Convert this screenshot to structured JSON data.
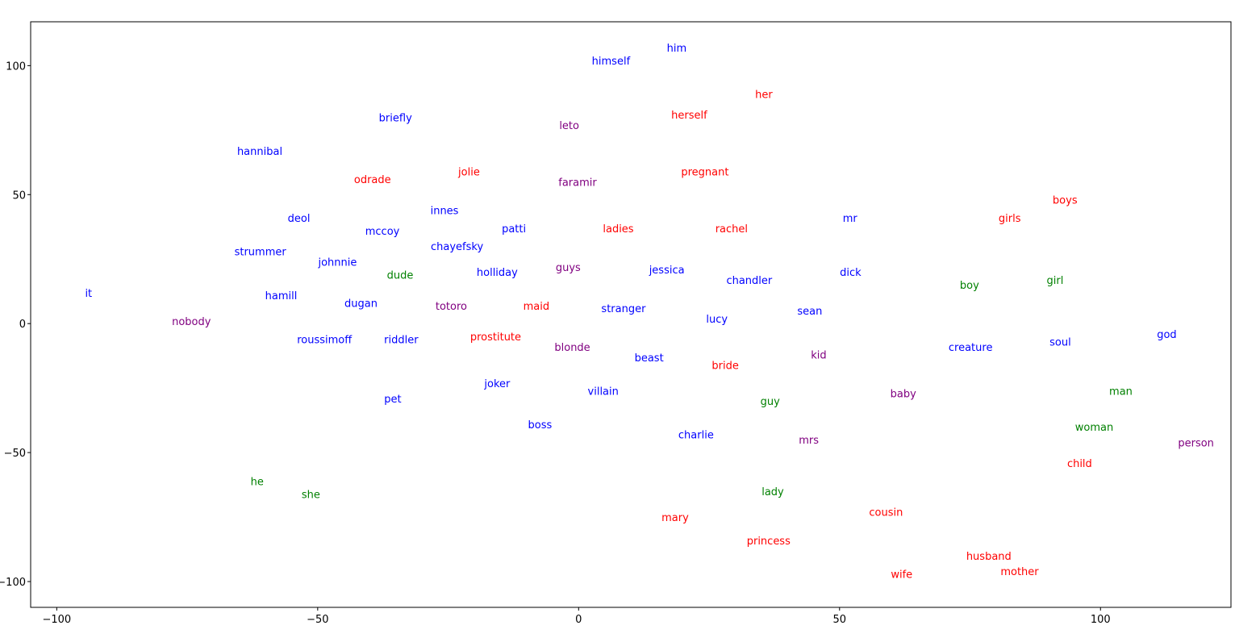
{
  "chart_data": {
    "type": "scatter",
    "title": "",
    "xlabel": "",
    "ylabel": "",
    "xlim": [
      -105,
      125
    ],
    "ylim": [
      -110,
      117
    ],
    "x_ticks": [
      -100,
      -50,
      0,
      50,
      100
    ],
    "y_ticks": [
      -100,
      -50,
      0,
      50,
      100
    ],
    "x_tick_labels": [
      "−100",
      "−50",
      "0",
      "50",
      "100"
    ],
    "y_tick_labels": [
      "−100",
      "−50",
      "0",
      "50",
      "100"
    ],
    "grid": false,
    "legend": "none",
    "colors": {
      "blue": "#0000ff",
      "red": "#ff0000",
      "green": "#008000",
      "purple": "#800080"
    },
    "points": [
      {
        "label": "him",
        "x": 18.8,
        "y": 107,
        "color": "blue"
      },
      {
        "label": "himself",
        "x": 6.2,
        "y": 102,
        "color": "blue"
      },
      {
        "label": "her",
        "x": 35.5,
        "y": 89,
        "color": "red"
      },
      {
        "label": "herself",
        "x": 21.2,
        "y": 81,
        "color": "red"
      },
      {
        "label": "briefly",
        "x": -35.1,
        "y": 80,
        "color": "blue"
      },
      {
        "label": "leto",
        "x": -1.8,
        "y": 77,
        "color": "purple"
      },
      {
        "label": "hannibal",
        "x": -61.1,
        "y": 67,
        "color": "blue"
      },
      {
        "label": "odrade",
        "x": -39.5,
        "y": 56,
        "color": "red"
      },
      {
        "label": "jolie",
        "x": -21.0,
        "y": 59,
        "color": "red"
      },
      {
        "label": "pregnant",
        "x": 24.2,
        "y": 59,
        "color": "red"
      },
      {
        "label": "faramir",
        "x": -0.2,
        "y": 55,
        "color": "purple"
      },
      {
        "label": "boys",
        "x": 93.2,
        "y": 48,
        "color": "red"
      },
      {
        "label": "innes",
        "x": -25.7,
        "y": 44,
        "color": "blue"
      },
      {
        "label": "deol",
        "x": -53.6,
        "y": 41,
        "color": "blue"
      },
      {
        "label": "mr",
        "x": 52.0,
        "y": 41,
        "color": "blue"
      },
      {
        "label": "girls",
        "x": 82.6,
        "y": 41,
        "color": "red"
      },
      {
        "label": "mccoy",
        "x": -37.6,
        "y": 36,
        "color": "blue"
      },
      {
        "label": "patti",
        "x": -12.4,
        "y": 37,
        "color": "blue"
      },
      {
        "label": "ladies",
        "x": 7.6,
        "y": 37,
        "color": "red"
      },
      {
        "label": "rachel",
        "x": 29.3,
        "y": 37,
        "color": "red"
      },
      {
        "label": "chayefsky",
        "x": -23.3,
        "y": 30,
        "color": "blue"
      },
      {
        "label": "strummer",
        "x": -61.0,
        "y": 28,
        "color": "blue"
      },
      {
        "label": "johnnie",
        "x": -46.2,
        "y": 24,
        "color": "blue"
      },
      {
        "label": "guys",
        "x": -2.0,
        "y": 22,
        "color": "purple"
      },
      {
        "label": "jessica",
        "x": 16.9,
        "y": 21,
        "color": "blue"
      },
      {
        "label": "dude",
        "x": -34.2,
        "y": 19,
        "color": "green"
      },
      {
        "label": "holliday",
        "x": -15.6,
        "y": 20,
        "color": "blue"
      },
      {
        "label": "chandler",
        "x": 32.7,
        "y": 17,
        "color": "blue"
      },
      {
        "label": "dick",
        "x": 52.1,
        "y": 20,
        "color": "blue"
      },
      {
        "label": "girl",
        "x": 91.3,
        "y": 17,
        "color": "green"
      },
      {
        "label": "boy",
        "x": 74.9,
        "y": 15,
        "color": "green"
      },
      {
        "label": "it",
        "x": -93.9,
        "y": 12,
        "color": "blue"
      },
      {
        "label": "hamill",
        "x": -57.0,
        "y": 11,
        "color": "blue"
      },
      {
        "label": "dugan",
        "x": -41.7,
        "y": 8,
        "color": "blue"
      },
      {
        "label": "totoro",
        "x": -24.4,
        "y": 7,
        "color": "purple"
      },
      {
        "label": "maid",
        "x": -8.1,
        "y": 7,
        "color": "red"
      },
      {
        "label": "stranger",
        "x": 8.6,
        "y": 6,
        "color": "blue"
      },
      {
        "label": "lucy",
        "x": 26.5,
        "y": 2,
        "color": "blue"
      },
      {
        "label": "sean",
        "x": 44.3,
        "y": 5,
        "color": "blue"
      },
      {
        "label": "nobody",
        "x": -74.2,
        "y": 1,
        "color": "purple"
      },
      {
        "label": "roussimoff",
        "x": -48.7,
        "y": -6,
        "color": "blue"
      },
      {
        "label": "riddler",
        "x": -34.0,
        "y": -6,
        "color": "blue"
      },
      {
        "label": "prostitute",
        "x": -15.9,
        "y": -5,
        "color": "red"
      },
      {
        "label": "blonde",
        "x": -1.2,
        "y": -9,
        "color": "purple"
      },
      {
        "label": "god",
        "x": 112.7,
        "y": -4,
        "color": "blue"
      },
      {
        "label": "soul",
        "x": 92.3,
        "y": -7,
        "color": "blue"
      },
      {
        "label": "creature",
        "x": 75.1,
        "y": -9,
        "color": "blue"
      },
      {
        "label": "kid",
        "x": 46.0,
        "y": -12,
        "color": "purple"
      },
      {
        "label": "beast",
        "x": 13.5,
        "y": -13,
        "color": "blue"
      },
      {
        "label": "bride",
        "x": 28.1,
        "y": -16,
        "color": "red"
      },
      {
        "label": "joker",
        "x": -15.6,
        "y": -23,
        "color": "blue"
      },
      {
        "label": "villain",
        "x": 4.7,
        "y": -26,
        "color": "blue"
      },
      {
        "label": "baby",
        "x": 62.2,
        "y": -27,
        "color": "purple"
      },
      {
        "label": "man",
        "x": 103.9,
        "y": -26,
        "color": "green"
      },
      {
        "label": "pet",
        "x": -35.6,
        "y": -29,
        "color": "blue"
      },
      {
        "label": "guy",
        "x": 36.7,
        "y": -30,
        "color": "green"
      },
      {
        "label": "boss",
        "x": -7.4,
        "y": -39,
        "color": "blue"
      },
      {
        "label": "charlie",
        "x": 22.5,
        "y": -43,
        "color": "blue"
      },
      {
        "label": "woman",
        "x": 98.8,
        "y": -40,
        "color": "green"
      },
      {
        "label": "mrs",
        "x": 44.1,
        "y": -45,
        "color": "purple"
      },
      {
        "label": "person",
        "x": 118.3,
        "y": -46,
        "color": "purple"
      },
      {
        "label": "child",
        "x": 96.0,
        "y": -54,
        "color": "red"
      },
      {
        "label": "he",
        "x": -61.6,
        "y": -61,
        "color": "green"
      },
      {
        "label": "she",
        "x": -51.3,
        "y": -66,
        "color": "green"
      },
      {
        "label": "lady",
        "x": 37.2,
        "y": -65,
        "color": "green"
      },
      {
        "label": "cousin",
        "x": 58.9,
        "y": -73,
        "color": "red"
      },
      {
        "label": "mary",
        "x": 18.5,
        "y": -75,
        "color": "red"
      },
      {
        "label": "princess",
        "x": 36.4,
        "y": -84,
        "color": "red"
      },
      {
        "label": "husband",
        "x": 78.6,
        "y": -90,
        "color": "red"
      },
      {
        "label": "mother",
        "x": 84.5,
        "y": -96,
        "color": "red"
      },
      {
        "label": "wife",
        "x": 61.9,
        "y": -97,
        "color": "red"
      }
    ]
  }
}
